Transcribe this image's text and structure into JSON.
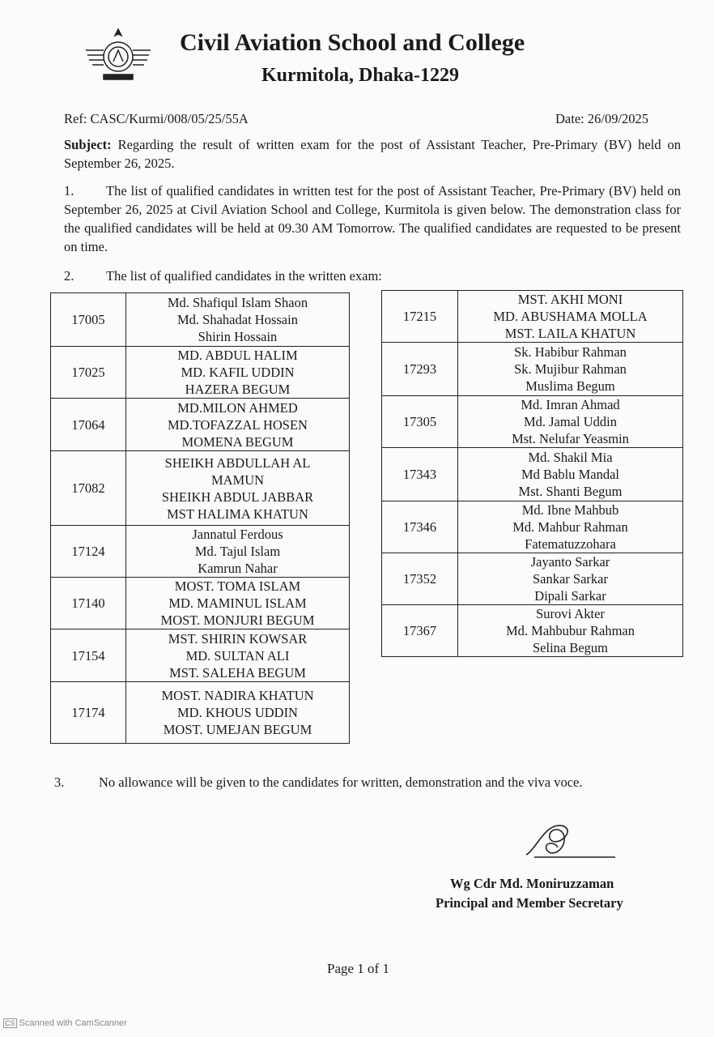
{
  "header": {
    "title": "Civil Aviation School and College",
    "subtitle": "Kurmitola, Dhaka-1229"
  },
  "ref": "Ref: CASC/Kurmi/008/05/25/55A",
  "date": "Date: 26/09/2025",
  "subject_label": "Subject:",
  "subject_text": " Regarding the result of written exam for the post of Assistant Teacher, Pre-Primary (BV) held on September 26, 2025.",
  "para1_num": "1.",
  "para1": "The list of qualified candidates in written test for the post of Assistant Teacher, Pre-Primary (BV) held on September 26, 2025 at Civil Aviation School and College, Kurmitola is given below. The demonstration class for the qualified candidates will be held at 09.30 AM Tomorrow. The qualified candidates are requested to be present on time.",
  "para2_num": "2.",
  "para2": "The list of qualified candidates in the written exam:",
  "table_left": [
    {
      "id": "17005",
      "names": [
        "Md. Shafiqul Islam Shaon",
        "Md. Shahadat Hossain",
        "Shirin Hossain"
      ]
    },
    {
      "id": "17025",
      "names": [
        "MD. ABDUL HALIM",
        "MD. KAFIL UDDIN",
        "HAZERA BEGUM"
      ]
    },
    {
      "id": "17064",
      "names": [
        "MD.MILON AHMED",
        "MD.TOFAZZAL HOSEN",
        "MOMENA BEGUM"
      ]
    },
    {
      "id": "17082",
      "names": [
        "SHEIKH ABDULLAH AL MAMUN",
        "SHEIKH ABDUL JABBAR",
        "MST HALIMA KHATUN"
      ]
    },
    {
      "id": "17124",
      "names": [
        "Jannatul Ferdous",
        "Md. Tajul Islam",
        "Kamrun Nahar"
      ]
    },
    {
      "id": "17140",
      "names": [
        "MOST. TOMA ISLAM",
        "MD. MAMINUL ISLAM",
        "MOST. MONJURI BEGUM"
      ]
    },
    {
      "id": "17154",
      "names": [
        "MST. SHIRIN KOWSAR",
        "MD. SULTAN ALI",
        "MST. SALEHA BEGUM"
      ]
    },
    {
      "id": "17174",
      "names": [
        "MOST. NADIRA KHATUN",
        "MD. KHOUS UDDIN",
        "MOST. UMEJAN BEGUM"
      ]
    }
  ],
  "table_right": [
    {
      "id": "17215",
      "names": [
        "MST. AKHI MONI",
        "MD. ABUSHAMA MOLLA",
        "MST. LAILA KHATUN"
      ]
    },
    {
      "id": "17293",
      "names": [
        "Sk. Habibur Rahman",
        "Sk. Mujibur Rahman",
        "Muslima Begum"
      ]
    },
    {
      "id": "17305",
      "names": [
        "Md. Imran Ahmad",
        "Md. Jamal Uddin",
        "Mst. Nelufar Yeasmin"
      ]
    },
    {
      "id": "17343",
      "names": [
        "Md. Shakil Mia",
        "Md Bablu Mandal",
        "Mst. Shanti Begum"
      ]
    },
    {
      "id": "17346",
      "names": [
        "Md. Ibne Mahbub",
        "Md. Mahbur Rahman",
        "Fatematuzzohara"
      ]
    },
    {
      "id": "17352",
      "names": [
        "Jayanto Sarkar",
        "Sankar Sarkar",
        "Dipali Sarkar"
      ]
    },
    {
      "id": "17367",
      "names": [
        "Surovi Akter",
        "Md. Mahbubur Rahman",
        "Selina Begum"
      ]
    }
  ],
  "para3_num": "3.",
  "para3": "No allowance will be given to the candidates for written, demonstration and the viva voce.",
  "signatory": {
    "name": "Wg Cdr Md. Moniruzzaman",
    "title": "Principal and Member Secretary"
  },
  "page": "Page 1 of 1",
  "scanner": {
    "badge": "CS",
    "text": "Scanned with CamScanner"
  }
}
